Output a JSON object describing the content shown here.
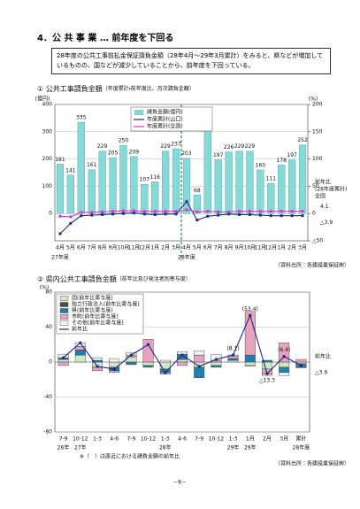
{
  "header": {
    "title": "4．公 共 事 業 … 前年度を下回る"
  },
  "summary": "28年度の公共工事前払金保証請負金額（28年4月～29年3月累計）をみると、県などが増加しているものの、国などが減少していることから、前年度を下回っている。",
  "chart_data": [
    {
      "type": "combo",
      "title": "① 公共工事請負金額",
      "subtitle": "（年度累計・前年度比、月次請負金額）",
      "ylabel": "(億円)",
      "y2label": "(%)",
      "categories": [
        "4月",
        "5月",
        "6月",
        "7月",
        "8月",
        "9月",
        "10月",
        "11月",
        "12月",
        "1月",
        "2月",
        "3月",
        "4月",
        "5月",
        "6月",
        "7月",
        "8月",
        "9月",
        "10月",
        "11月",
        "12月",
        "1月",
        "2月",
        "3月"
      ],
      "years": [
        "27年度",
        null,
        null,
        null,
        null,
        null,
        null,
        null,
        null,
        null,
        null,
        null,
        "28年度",
        null,
        null,
        null,
        null,
        null,
        null,
        null,
        null,
        null,
        null,
        null
      ],
      "series": [
        {
          "name": "請負金額(億円)",
          "type": "bar",
          "color": "#86d9d6",
          "values": [
            181,
            141,
            335,
            161,
            229,
            205,
            250,
            209,
            107,
            116,
            229,
            237,
            203,
            68,
            326,
            197,
            226,
            229,
            229,
            160,
            111,
            178,
            197,
            252
          ]
        },
        {
          "name": "年度累計(山口)",
          "type": "line",
          "axis": "y2",
          "color": "#1c2a86",
          "values": [
            -37,
            -18,
            -4,
            -3,
            -2,
            -1,
            0,
            1,
            -1,
            -2,
            -1,
            -1,
            22,
            -12,
            -5,
            -3,
            -1,
            -2,
            -2,
            -3,
            -4,
            -4,
            -4,
            -3.9
          ],
          "value_labels": [
            null,
            null,
            null,
            null,
            null,
            null,
            null,
            null,
            null,
            null,
            null,
            null,
            null,
            null,
            null,
            null,
            null,
            null,
            null,
            null,
            null,
            null,
            null,
            "△3.9"
          ]
        },
        {
          "name": "年度累計(全国)",
          "type": "line",
          "axis": "y2",
          "color": "#d23cc0",
          "values": [
            -5,
            -6,
            2,
            2,
            3,
            4,
            5,
            5,
            4,
            4,
            4,
            4,
            7,
            3,
            4,
            3,
            3,
            4,
            4,
            4,
            4,
            4,
            4,
            4.1
          ],
          "value_labels": [
            null,
            null,
            null,
            null,
            null,
            null,
            null,
            null,
            null,
            null,
            null,
            null,
            null,
            null,
            null,
            null,
            null,
            null,
            null,
            null,
            null,
            null,
            null,
            "4.1"
          ]
        }
      ],
      "ylim": [
        -100,
        400
      ],
      "yticks": [
        0,
        100,
        200,
        300,
        400
      ],
      "y2lim": [
        -50,
        200
      ],
      "y2ticks": [
        {
          "value": -50,
          "label": "△50"
        },
        0,
        50,
        100,
        150,
        200
      ],
      "grid": true,
      "legend": "top",
      "annotations": [
        "前年比",
        "(28年度累計)",
        "全国"
      ],
      "source": "（資料出所：各建設業保証㈱）"
    },
    {
      "type": "stacked",
      "title": "② 県内公共工事請負金額",
      "subtitle": "（前年比及び発注者別寄与度）",
      "ylabel": "(%)",
      "categories": [
        "7-9",
        "10-12",
        "1-3",
        "4-6",
        "7-9",
        "10-12",
        "1-3",
        "4-6",
        "7-9",
        "10-12",
        "1-3",
        "1月",
        "2月",
        "3月",
        "累計"
      ],
      "years": [
        "26年",
        "27年",
        null,
        null,
        null,
        null,
        "28年",
        null,
        null,
        null,
        "29年",
        "29年",
        null,
        null,
        "28年度"
      ],
      "series": [
        {
          "name": "国(前年比寄与度)",
          "color": "#cfe8c4",
          "values": [
            3,
            8,
            -6,
            -6,
            6,
            -4,
            -8,
            3,
            -6,
            -4,
            2,
            -4,
            -8,
            -6,
            -2
          ]
        },
        {
          "name": "独立行政法人(前年比寄与度)",
          "color": "#4d4d4d",
          "values": [
            0,
            0,
            0,
            0,
            0,
            0,
            0,
            0,
            0,
            0,
            0,
            0,
            0,
            0,
            0
          ]
        },
        {
          "name": "県(前年比寄与度)",
          "color": "#1f7fb0",
          "values": [
            2,
            6,
            2,
            -4,
            -3,
            -2,
            -4,
            6,
            -12,
            -2,
            2,
            8,
            2,
            -6,
            -4
          ]
        },
        {
          "name": "市町(前年比寄与度)",
          "color": "#e7a3bd",
          "values": [
            -4,
            4,
            -4,
            -2,
            2,
            26,
            -2,
            -4,
            8,
            2,
            3,
            50,
            -6,
            22,
            3
          ]
        },
        {
          "name": "その他(前年比寄与度)",
          "color": "#f2f2f2",
          "values": [
            4,
            4,
            3,
            4,
            3,
            0,
            2,
            3,
            5,
            7,
            1.1,
            -0.6,
            -1.3,
            -3.6,
            -0.9
          ]
        },
        {
          "name": "前年比",
          "type": "line",
          "color": "#1c2a86",
          "values": [
            5,
            22,
            -5,
            -8,
            8,
            20,
            -12,
            8,
            -5,
            3,
            8.1,
            53.4,
            -13.3,
            6.4,
            -3.9
          ],
          "value_labels": [
            null,
            null,
            null,
            null,
            null,
            null,
            null,
            null,
            null,
            null,
            "(8.1)",
            "(53.4)",
            "△13.3",
            "(6.4)",
            "△3.9"
          ]
        }
      ],
      "ylim": [
        -80,
        80
      ],
      "yticks": [
        -80,
        -40,
        0,
        40,
        80
      ],
      "legend": "top-left",
      "annotations": [
        "前年比"
      ],
      "note": "※（　）は直近における請負金額の前年比",
      "source": "（資料出所：各建設業保証㈱）"
    }
  ],
  "footer": {
    "page": "－8－"
  }
}
